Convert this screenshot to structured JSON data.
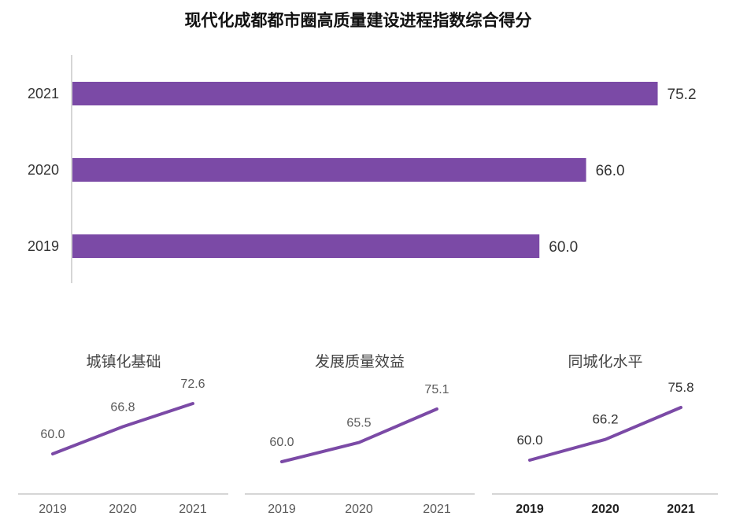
{
  "title": "现代化成都都市圈高质量建设进程指数综合得分",
  "colors": {
    "accent": "#7b4aa6",
    "axis": "#c8c8c8",
    "text": "#333333",
    "muted": "#595959"
  },
  "chart_data": [
    {
      "type": "bar",
      "orientation": "horizontal",
      "title": "现代化成都都市圈高质量建设进程指数综合得分",
      "categories": [
        "2021",
        "2020",
        "2019"
      ],
      "values": [
        75.2,
        66.0,
        60.0
      ],
      "value_labels": [
        "75.2",
        "66.0",
        "60.0"
      ],
      "xlim": [
        0,
        80
      ]
    },
    {
      "type": "line",
      "title": "城镇化基础",
      "x": [
        "2019",
        "2020",
        "2021"
      ],
      "values": [
        60.0,
        66.8,
        72.6
      ],
      "value_labels": [
        "60.0",
        "66.8",
        "72.6"
      ]
    },
    {
      "type": "line",
      "title": "发展质量效益",
      "x": [
        "2019",
        "2020",
        "2021"
      ],
      "values": [
        60.0,
        65.5,
        75.1
      ],
      "value_labels": [
        "60.0",
        "65.5",
        "75.1"
      ]
    },
    {
      "type": "line",
      "title": "同城化水平",
      "x": [
        "2019",
        "2020",
        "2021"
      ],
      "values": [
        60.0,
        66.2,
        75.8
      ],
      "value_labels": [
        "60.0",
        "66.2",
        "75.8"
      ]
    }
  ]
}
